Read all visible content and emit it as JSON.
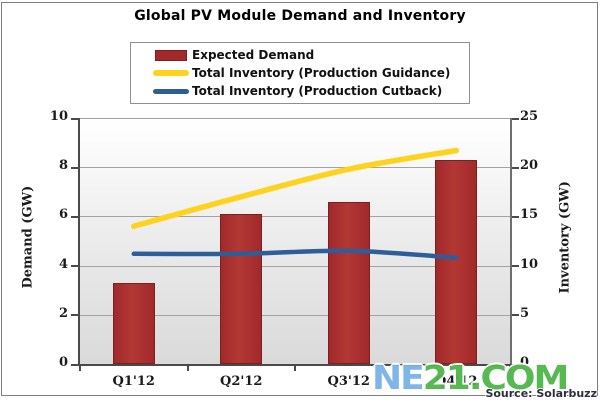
{
  "chart_data": {
    "type": "bar",
    "title": "Global PV Module Demand and Inventory",
    "categories": [
      "Q1'12",
      "Q2'12",
      "Q3'12",
      "Q4'12"
    ],
    "series": [
      {
        "name": "Expected Demand",
        "type": "bar",
        "axis": "left",
        "color": "#A2292B",
        "values": [
          3.3,
          6.1,
          6.6,
          8.3
        ]
      },
      {
        "name": "Total Inventory (Production Guidance)",
        "type": "line",
        "axis": "right",
        "color": "#FFD21E",
        "values": [
          14,
          17,
          19.8,
          21.7
        ]
      },
      {
        "name": "Total Inventory (Production Cutback)",
        "type": "line",
        "axis": "right",
        "color": "#2E5D99",
        "values": [
          11.2,
          11.2,
          11.5,
          10.8
        ]
      }
    ],
    "left_axis": {
      "label": "Demand (GW)",
      "min": 0,
      "max": 10,
      "ticks": [
        0,
        2,
        4,
        6,
        8,
        10
      ]
    },
    "right_axis": {
      "label": "Inventory (GW)",
      "min": 0,
      "max": 25,
      "ticks": [
        0,
        5,
        10,
        15,
        20,
        25
      ]
    },
    "grid": true,
    "legend_position": "top-center",
    "plot_background": {
      "top": "#ffffff",
      "bottom": "#dadada"
    },
    "gridline_color": "#a3a3a3"
  },
  "legend": {
    "items": [
      {
        "label": "Expected Demand"
      },
      {
        "label": "Total Inventory (Production Guidance)"
      },
      {
        "label": "Total Inventory (Production Cutback)"
      }
    ]
  },
  "watermark": {
    "part1": "NE",
    "part2": "21.COM",
    "color1": "#78B3E6",
    "color2": "#4FB648"
  },
  "source": {
    "text": "Source: Solarbuzz"
  }
}
